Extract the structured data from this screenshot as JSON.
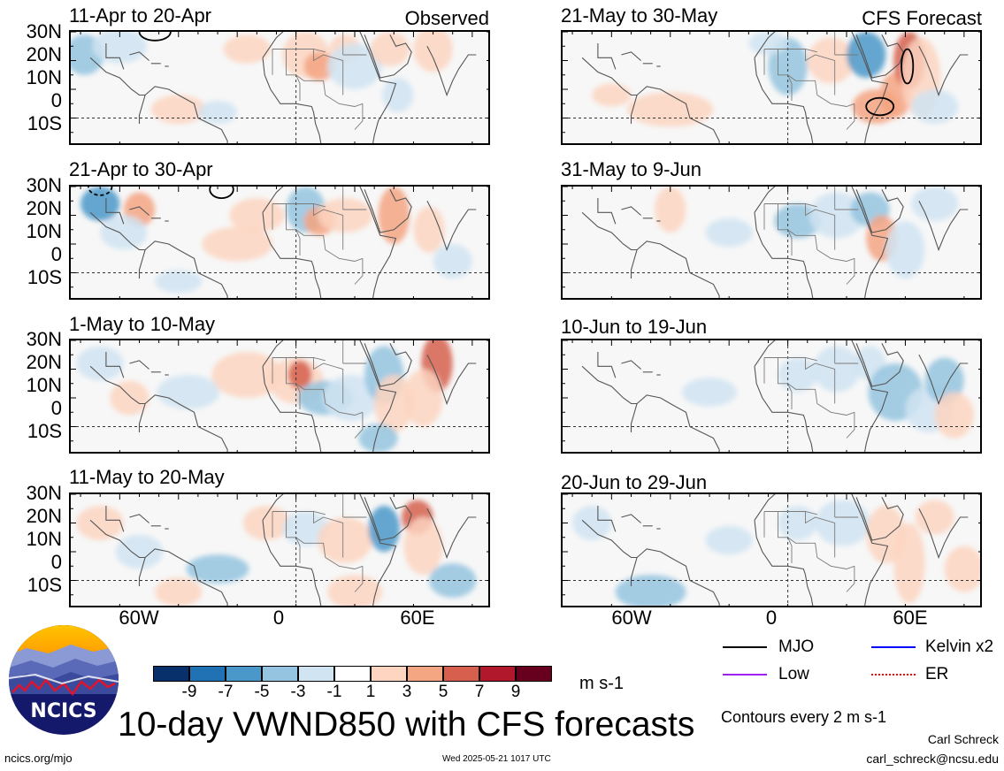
{
  "chart_data": {
    "type": "heatmap",
    "title": "10-day VWND850 with CFS forecasts",
    "subtitle_left": "Observed",
    "subtitle_right": "CFS Forecast",
    "units": "m s-1",
    "contour_note": "Contours every 2 m s-1",
    "lat_ticks": [
      "30N",
      "20N",
      "10N",
      "0",
      "10S"
    ],
    "lon_ticks": [
      "60W",
      "0",
      "60E"
    ],
    "colorbar": {
      "levels": [
        "-9",
        "-7",
        "-5",
        "-3",
        "-1",
        "1",
        "3",
        "5",
        "7",
        "9"
      ],
      "colors": [
        "#08306b",
        "#2171b5",
        "#4a98c9",
        "#94c4df",
        "#d0e4f2",
        "#ffffff",
        "#fdd5c1",
        "#f4a582",
        "#d6604d",
        "#b2182b",
        "#67001f"
      ]
    },
    "panels_observed": [
      {
        "label": "11-Apr to 20-Apr"
      },
      {
        "label": "21-Apr to 30-Apr"
      },
      {
        "label": "1-May to 10-May"
      },
      {
        "label": "11-May to 20-May"
      }
    ],
    "panels_forecast": [
      {
        "label": "21-May to 30-May"
      },
      {
        "label": "31-May to 9-Jun"
      },
      {
        "label": "10-Jun to 19-Jun"
      },
      {
        "label": "20-Jun to 29-Jun"
      }
    ],
    "legend": [
      {
        "name": "MJO",
        "color": "#000000"
      },
      {
        "name": "Kelvin x2",
        "color": "#0000ff"
      },
      {
        "name": "Low",
        "color": "#a020f0"
      },
      {
        "name": "ER",
        "color": "#ff0000"
      }
    ]
  },
  "logo": {
    "text": "NCICS"
  },
  "footer": {
    "url": "ncics.org/mjo",
    "timestamp": "Wed 2025-05-21 1017 UTC",
    "author": "Carl Schreck",
    "email": "carl_schreck@ncsu.edu"
  }
}
